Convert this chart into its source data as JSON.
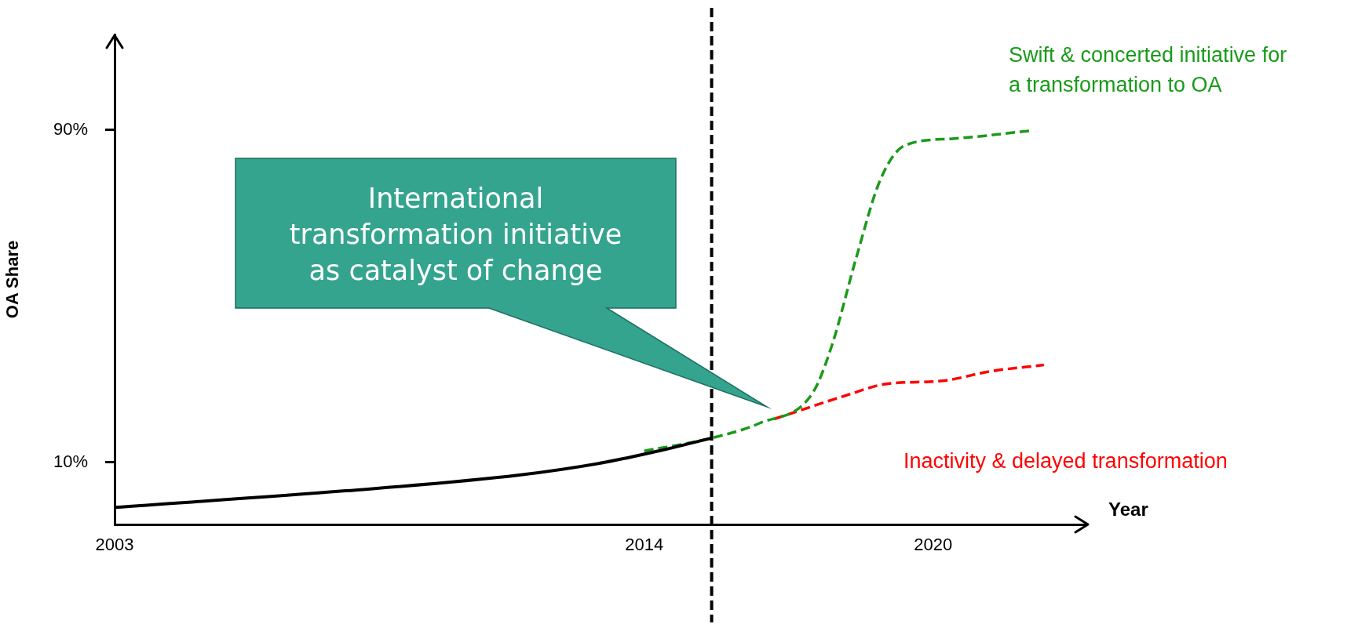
{
  "chart_data": {
    "type": "line",
    "xlabel": "Year",
    "ylabel": "OA Share",
    "xlim": [
      2003,
      2023.2
    ],
    "ylim": [
      -5,
      113
    ],
    "xticks": [
      2003,
      2014,
      2020
    ],
    "yticks": [
      {
        "value": 10,
        "label": "10%"
      },
      {
        "value": 90,
        "label": "90%"
      }
    ],
    "grid": false,
    "legend": false,
    "marker": "none",
    "series": [
      {
        "color": "#000000",
        "line_style": "solid",
        "x": [
          2003,
          2007.8,
          2011.4,
          2013.2,
          2014.3,
          2015.4
        ],
        "values": [
          -0.9,
          3.1,
          6.9,
          10,
          12.7,
          15.8
        ]
      },
      {
        "name": "Swift & concerted initiative for a transformation to OA",
        "color": "#1a9a1a",
        "line_style": "dashed",
        "x": [
          2014,
          2015.4,
          2016.4,
          2017.5,
          2017.9,
          2018.4,
          2018.9,
          2019.4,
          2020.4,
          2022
        ],
        "values": [
          12.7,
          15.8,
          19.4,
          26.7,
          38.2,
          59.1,
          77.9,
          86.2,
          87.9,
          89.8
        ]
      },
      {
        "name": "Inactivity & delayed transformation",
        "color": "#ff0000",
        "line_style": "dashed",
        "x": [
          2016.7,
          2018.2,
          2019,
          2020.2,
          2021.2,
          2022.3
        ],
        "values": [
          20.4,
          26.1,
          28.8,
          29.6,
          31.9,
          33.4
        ]
      }
    ],
    "ref_lines": [
      {
        "axis": "x",
        "value": 2015.4,
        "color": "#000000",
        "line_style": "dashed"
      }
    ],
    "annotations": [
      "International transformation initiative as catalyst of change"
    ]
  }
}
